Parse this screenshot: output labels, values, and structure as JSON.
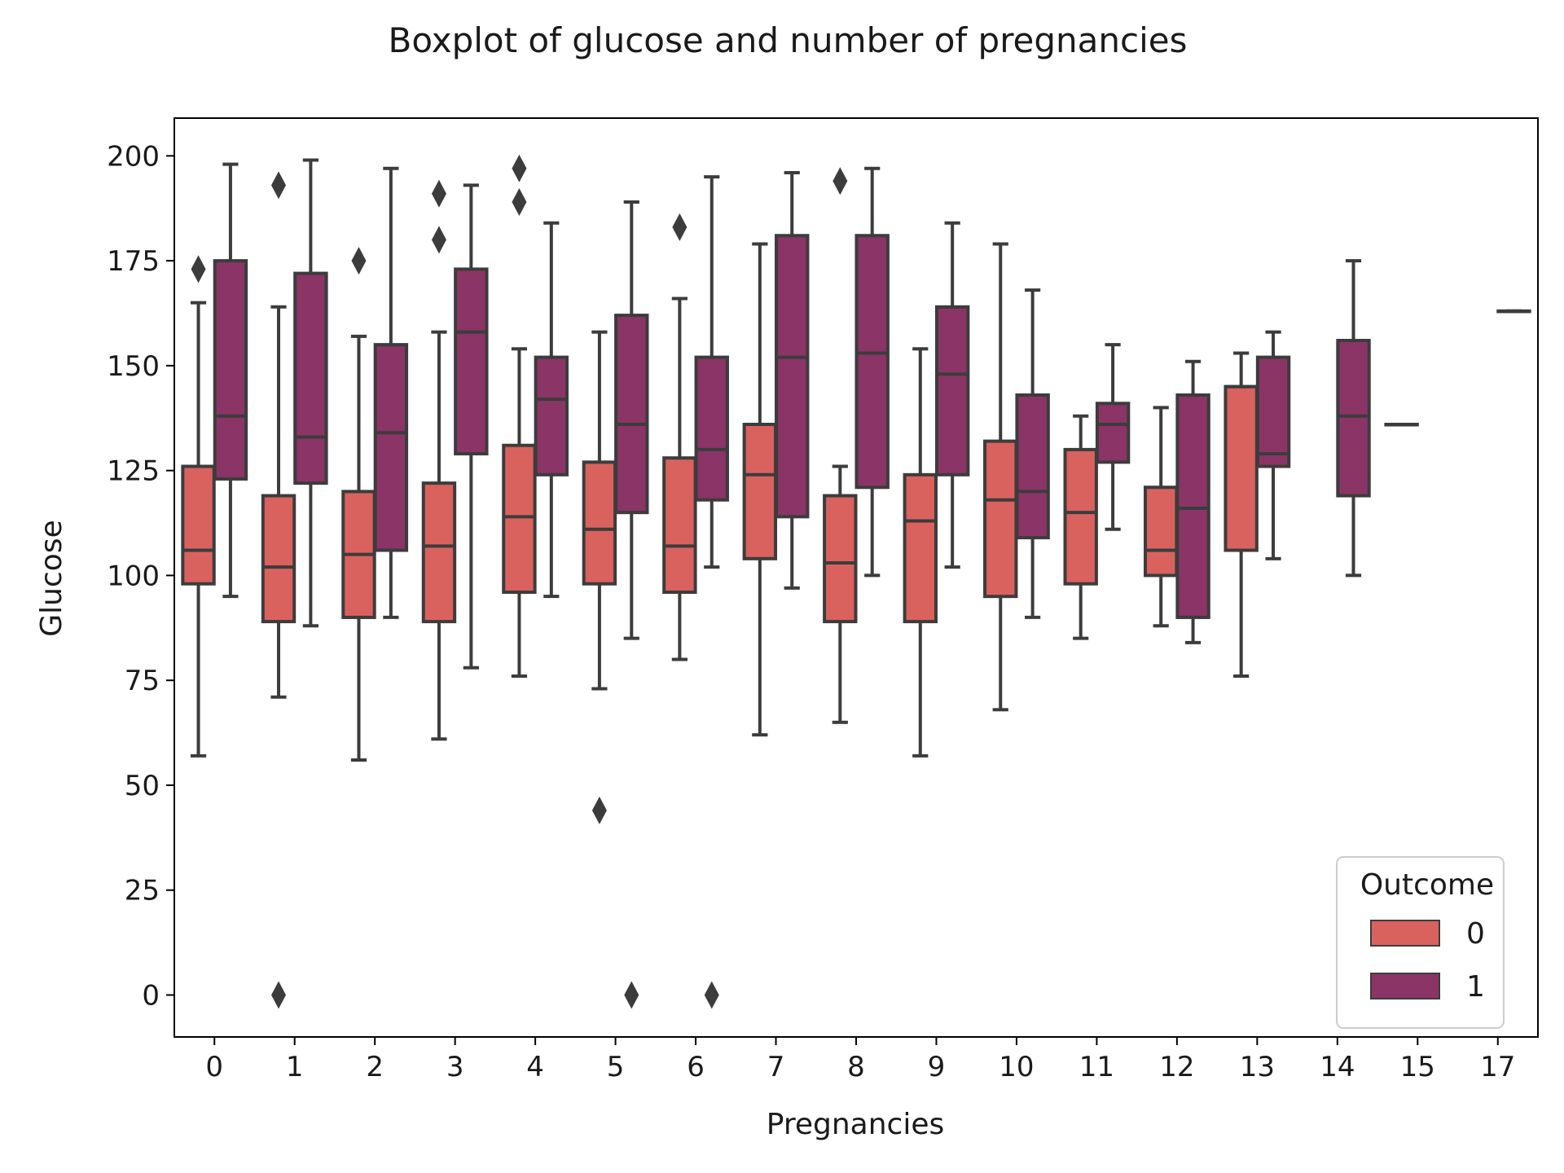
{
  "chart_data": {
    "type": "boxplot",
    "title": "Boxplot of glucose and number of pregnancies",
    "xlabel": "Pregnancies",
    "ylabel": "Glucose",
    "ylim": [
      -10,
      209
    ],
    "yticks": [
      0,
      25,
      50,
      75,
      100,
      125,
      150,
      175,
      200
    ],
    "categories": [
      "0",
      "1",
      "2",
      "3",
      "4",
      "5",
      "6",
      "7",
      "8",
      "9",
      "10",
      "11",
      "12",
      "13",
      "14",
      "15",
      "17"
    ],
    "grid": false,
    "legend": {
      "title": "Outcome",
      "placement": "lower-right",
      "entries": [
        "0",
        "1"
      ]
    },
    "colors": {
      "0": "#d9625f",
      "1": "#8b3466",
      "edge": "#3c3c3c"
    },
    "series": [
      {
        "name": "0",
        "boxes": [
          {
            "category": "0",
            "whislo": 57,
            "q1": 98,
            "med": 106,
            "q3": 126,
            "whishi": 165,
            "fliers": [
              173
            ]
          },
          {
            "category": "1",
            "whislo": 71,
            "q1": 89,
            "med": 102,
            "q3": 119,
            "whishi": 164,
            "fliers": [
              193,
              0
            ]
          },
          {
            "category": "2",
            "whislo": 56,
            "q1": 90,
            "med": 105,
            "q3": 120,
            "whishi": 157,
            "fliers": [
              175
            ]
          },
          {
            "category": "3",
            "whislo": 61,
            "q1": 89,
            "med": 107,
            "q3": 122,
            "whishi": 158,
            "fliers": [
              191,
              180
            ]
          },
          {
            "category": "4",
            "whislo": 76,
            "q1": 96,
            "med": 114,
            "q3": 131,
            "whishi": 154,
            "fliers": [
              197,
              189
            ]
          },
          {
            "category": "5",
            "whislo": 73,
            "q1": 98,
            "med": 111,
            "q3": 127,
            "whishi": 158,
            "fliers": [
              44
            ]
          },
          {
            "category": "6",
            "whislo": 80,
            "q1": 96,
            "med": 107,
            "q3": 128,
            "whishi": 166,
            "fliers": [
              183
            ]
          },
          {
            "category": "7",
            "whislo": 62,
            "q1": 104,
            "med": 124,
            "q3": 136,
            "whishi": 179,
            "fliers": []
          },
          {
            "category": "8",
            "whislo": 65,
            "q1": 89,
            "med": 103,
            "q3": 119,
            "whishi": 126,
            "fliers": [
              194
            ]
          },
          {
            "category": "9",
            "whislo": 57,
            "q1": 89,
            "med": 113,
            "q3": 124,
            "whishi": 154,
            "fliers": []
          },
          {
            "category": "10",
            "whislo": 68,
            "q1": 95,
            "med": 118,
            "q3": 132,
            "whishi": 179,
            "fliers": []
          },
          {
            "category": "11",
            "whislo": 85,
            "q1": 98,
            "med": 115,
            "q3": 130,
            "whishi": 138,
            "fliers": []
          },
          {
            "category": "12",
            "whislo": 88,
            "q1": 100,
            "med": 106,
            "q3": 121,
            "whishi": 140,
            "fliers": []
          },
          {
            "category": "13",
            "whislo": 76,
            "q1": 106,
            "med": 145,
            "q3": 145,
            "whishi": 153,
            "fliers": []
          },
          {
            "category": "15",
            "whislo": 136,
            "q1": 136,
            "med": 136,
            "q3": 136,
            "whishi": 136,
            "fliers": []
          }
        ]
      },
      {
        "name": "1",
        "boxes": [
          {
            "category": "0",
            "whislo": 95,
            "q1": 123,
            "med": 138,
            "q3": 175,
            "whishi": 198,
            "fliers": []
          },
          {
            "category": "1",
            "whislo": 88,
            "q1": 122,
            "med": 133,
            "q3": 172,
            "whishi": 199,
            "fliers": []
          },
          {
            "category": "2",
            "whislo": 90,
            "q1": 106,
            "med": 134,
            "q3": 155,
            "whishi": 197,
            "fliers": []
          },
          {
            "category": "3",
            "whislo": 78,
            "q1": 129,
            "med": 158,
            "q3": 173,
            "whishi": 193,
            "fliers": []
          },
          {
            "category": "4",
            "whislo": 95,
            "q1": 124,
            "med": 142,
            "q3": 152,
            "whishi": 184,
            "fliers": []
          },
          {
            "category": "5",
            "whislo": 85,
            "q1": 115,
            "med": 136,
            "q3": 162,
            "whishi": 189,
            "fliers": [
              0
            ]
          },
          {
            "category": "6",
            "whislo": 102,
            "q1": 118,
            "med": 130,
            "q3": 152,
            "whishi": 195,
            "fliers": [
              0
            ]
          },
          {
            "category": "7",
            "whislo": 97,
            "q1": 114,
            "med": 152,
            "q3": 181,
            "whishi": 196,
            "fliers": []
          },
          {
            "category": "8",
            "whislo": 100,
            "q1": 121,
            "med": 153,
            "q3": 181,
            "whishi": 197,
            "fliers": []
          },
          {
            "category": "9",
            "whislo": 102,
            "q1": 124,
            "med": 148,
            "q3": 164,
            "whishi": 184,
            "fliers": []
          },
          {
            "category": "10",
            "whislo": 90,
            "q1": 109,
            "med": 120,
            "q3": 143,
            "whishi": 168,
            "fliers": []
          },
          {
            "category": "11",
            "whislo": 111,
            "q1": 127,
            "med": 136,
            "q3": 141,
            "whishi": 155,
            "fliers": []
          },
          {
            "category": "12",
            "whislo": 84,
            "q1": 90,
            "med": 116,
            "q3": 143,
            "whishi": 151,
            "fliers": []
          },
          {
            "category": "13",
            "whislo": 104,
            "q1": 126,
            "med": 129,
            "q3": 152,
            "whishi": 158,
            "fliers": []
          },
          {
            "category": "14",
            "whislo": 100,
            "q1": 119,
            "med": 138,
            "q3": 156,
            "whishi": 175,
            "fliers": []
          },
          {
            "category": "17",
            "whislo": 163,
            "q1": 163,
            "med": 163,
            "q3": 163,
            "whishi": 163,
            "fliers": []
          }
        ]
      }
    ]
  }
}
